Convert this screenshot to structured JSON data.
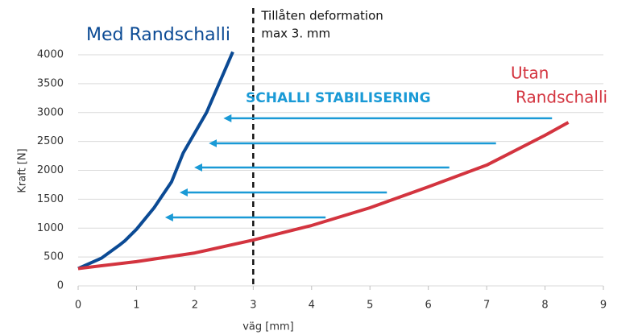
{
  "chart_data": {
    "type": "line",
    "xlabel": "väg [mm]",
    "ylabel": "Kraft [N]",
    "xlim": [
      0,
      9
    ],
    "ylim": [
      0,
      4000
    ],
    "xticks": [
      0,
      1,
      2,
      3,
      4,
      5,
      6,
      7,
      8,
      9
    ],
    "yticks": [
      0,
      500,
      1000,
      1500,
      2000,
      2500,
      3000,
      3500,
      4000
    ],
    "grid": true,
    "series": [
      {
        "label_lines": [
          "Med Randschalli"
        ],
        "color": "#0b4a94",
        "x": [
          0,
          0.4,
          0.7,
          0.8,
          1,
          1.3,
          1.6,
          1.8,
          2.2,
          2.65
        ],
        "values": [
          300,
          480,
          700,
          780,
          980,
          1350,
          1800,
          2300,
          3000,
          4050
        ]
      },
      {
        "label_lines": [
          "Utan",
          "Randschalli"
        ],
        "color": "#d3343f",
        "x": [
          0,
          1,
          2,
          3,
          4,
          5,
          6,
          7,
          8,
          8.4
        ],
        "values": [
          300,
          420,
          570,
          794,
          1045,
          1352,
          1714,
          2090,
          2606,
          2830
        ]
      }
    ],
    "vline": {
      "x": 3,
      "label_lines": [
        "Tillåten deformation",
        "max 3. mm"
      ]
    },
    "arrow_label": "SCHALLI STABILISERING",
    "arrow_color": "#1a9ad6",
    "arrows": [
      {
        "y": 2900,
        "x_from": 8.12,
        "x_to": 2.42
      },
      {
        "y": 2467,
        "x_from": 7.16,
        "x_to": 2.17
      },
      {
        "y": 2049,
        "x_from": 6.36,
        "x_to": 1.92
      },
      {
        "y": 1617,
        "x_from": 5.29,
        "x_to": 1.67
      },
      {
        "y": 1185,
        "x_from": 4.24,
        "x_to": 1.42
      }
    ]
  }
}
